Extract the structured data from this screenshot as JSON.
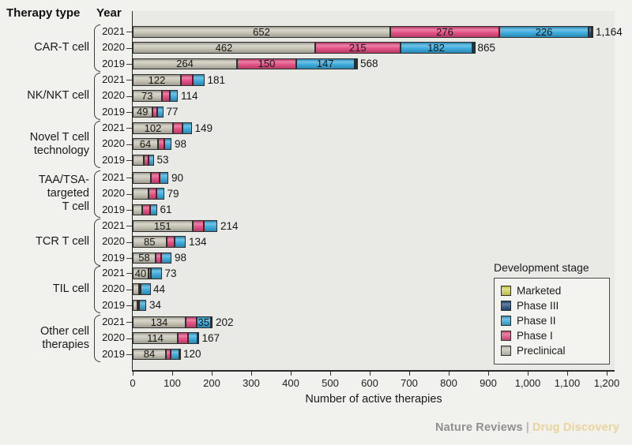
{
  "header": {
    "therapy_type": "Therapy type",
    "year": "Year"
  },
  "footer": {
    "brand1": "Nature Reviews",
    "separator": "|",
    "brand2": "Drug Discovery"
  },
  "legend": {
    "title": "Development stage",
    "items": [
      {
        "label": "Marketed",
        "color": "#d6d64f"
      },
      {
        "label": "Phase III",
        "color": "#1b4a7d"
      },
      {
        "label": "Phase II",
        "color": "#35a9dc"
      },
      {
        "label": "Phase I",
        "color": "#e34a80"
      },
      {
        "label": "Preclinical",
        "color": "#c6c3b4"
      }
    ]
  },
  "chart_data": {
    "type": "bar",
    "orientation": "horizontal-stacked",
    "xlabel": "Number of active therapies",
    "xlim": [
      0,
      1200
    ],
    "x_ticks": [
      "0",
      "100",
      "200",
      "300",
      "400",
      "500",
      "600",
      "700",
      "800",
      "900",
      "1,000",
      "1,100",
      "1,200"
    ],
    "stage_order": [
      "Preclinical",
      "Phase I",
      "Phase II",
      "Phase III",
      "Marketed"
    ],
    "stage_colors": {
      "Preclinical": "#c6c3b4",
      "Phase I": "#e34a80",
      "Phase II": "#35a9dc",
      "Phase III": "#1b4a7d",
      "Marketed": "#d6d64f"
    },
    "groups": [
      {
        "therapy": "CAR-T cell",
        "lines": [
          "CAR-T cell"
        ],
        "rows": [
          {
            "year": "2021",
            "total": 1164,
            "total_label": "1,164",
            "segments": [
              {
                "stage": "Preclinical",
                "value": 652,
                "label": "652"
              },
              {
                "stage": "Phase I",
                "value": 276,
                "label": "276"
              },
              {
                "stage": "Phase II",
                "value": 226,
                "label": "226"
              },
              {
                "stage": "Phase III",
                "value": 8
              },
              {
                "stage": "Marketed",
                "value": 2
              }
            ]
          },
          {
            "year": "2020",
            "total": 865,
            "total_label": "865",
            "segments": [
              {
                "stage": "Preclinical",
                "value": 462,
                "label": "462"
              },
              {
                "stage": "Phase I",
                "value": 215,
                "label": "215"
              },
              {
                "stage": "Phase II",
                "value": 182,
                "label": "182"
              },
              {
                "stage": "Phase III",
                "value": 4
              },
              {
                "stage": "Marketed",
                "value": 2
              }
            ]
          },
          {
            "year": "2019",
            "total": 568,
            "total_label": "568",
            "segments": [
              {
                "stage": "Preclinical",
                "value": 264,
                "label": "264"
              },
              {
                "stage": "Phase I",
                "value": 150,
                "label": "150"
              },
              {
                "stage": "Phase II",
                "value": 147,
                "label": "147"
              },
              {
                "stage": "Phase III",
                "value": 5
              },
              {
                "stage": "Marketed",
                "value": 2
              }
            ]
          }
        ]
      },
      {
        "therapy": "NK/NKT cell",
        "lines": [
          "NK/NKT cell"
        ],
        "rows": [
          {
            "year": "2021",
            "total": 181,
            "total_label": "181",
            "segments": [
              {
                "stage": "Preclinical",
                "value": 122,
                "label": "122"
              },
              {
                "stage": "Phase I",
                "value": 29
              },
              {
                "stage": "Phase II",
                "value": 30
              }
            ]
          },
          {
            "year": "2020",
            "total": 114,
            "total_label": "114",
            "segments": [
              {
                "stage": "Preclinical",
                "value": 73,
                "label": "73"
              },
              {
                "stage": "Phase I",
                "value": 20
              },
              {
                "stage": "Phase II",
                "value": 21
              }
            ]
          },
          {
            "year": "2019",
            "total": 77,
            "total_label": "77",
            "segments": [
              {
                "stage": "Preclinical",
                "value": 49,
                "label": "49"
              },
              {
                "stage": "Phase I",
                "value": 12
              },
              {
                "stage": "Phase II",
                "value": 16
              }
            ]
          }
        ]
      },
      {
        "therapy": "Novel T cell technology",
        "lines": [
          "Novel T cell",
          "technology"
        ],
        "rows": [
          {
            "year": "2021",
            "total": 149,
            "total_label": "149",
            "segments": [
              {
                "stage": "Preclinical",
                "value": 102,
                "label": "102"
              },
              {
                "stage": "Phase I",
                "value": 23
              },
              {
                "stage": "Phase II",
                "value": 24
              }
            ]
          },
          {
            "year": "2020",
            "total": 98,
            "total_label": "98",
            "segments": [
              {
                "stage": "Preclinical",
                "value": 64,
                "label": "64"
              },
              {
                "stage": "Phase I",
                "value": 16
              },
              {
                "stage": "Phase II",
                "value": 18
              }
            ]
          },
          {
            "year": "2019",
            "total": 53,
            "total_label": "53",
            "segments": [
              {
                "stage": "Preclinical",
                "value": 28
              },
              {
                "stage": "Phase I",
                "value": 12
              },
              {
                "stage": "Phase II",
                "value": 13
              }
            ]
          }
        ]
      },
      {
        "therapy": "TAA/TSA-targeted T cell",
        "lines": [
          "TAA/TSA-",
          "targeted",
          "T cell"
        ],
        "rows": [
          {
            "year": "2021",
            "total": 90,
            "total_label": "90",
            "segments": [
              {
                "stage": "Preclinical",
                "value": 46
              },
              {
                "stage": "Phase I",
                "value": 22
              },
              {
                "stage": "Phase II",
                "value": 22
              }
            ]
          },
          {
            "year": "2020",
            "total": 79,
            "total_label": "79",
            "segments": [
              {
                "stage": "Preclinical",
                "value": 39
              },
              {
                "stage": "Phase I",
                "value": 20
              },
              {
                "stage": "Phase II",
                "value": 20
              }
            ]
          },
          {
            "year": "2019",
            "total": 61,
            "total_label": "61",
            "segments": [
              {
                "stage": "Preclinical",
                "value": 24
              },
              {
                "stage": "Phase I",
                "value": 19
              },
              {
                "stage": "Phase II",
                "value": 18
              }
            ]
          }
        ]
      },
      {
        "therapy": "TCR T cell",
        "lines": [
          "TCR T cell"
        ],
        "rows": [
          {
            "year": "2021",
            "total": 214,
            "total_label": "214",
            "segments": [
              {
                "stage": "Preclinical",
                "value": 151,
                "label": "151"
              },
              {
                "stage": "Phase I",
                "value": 29
              },
              {
                "stage": "Phase II",
                "value": 34
              }
            ]
          },
          {
            "year": "2020",
            "total": 134,
            "total_label": "134",
            "segments": [
              {
                "stage": "Preclinical",
                "value": 85,
                "label": "85"
              },
              {
                "stage": "Phase I",
                "value": 21
              },
              {
                "stage": "Phase II",
                "value": 28
              }
            ]
          },
          {
            "year": "2019",
            "total": 98,
            "total_label": "98",
            "segments": [
              {
                "stage": "Preclinical",
                "value": 58,
                "label": "58"
              },
              {
                "stage": "Phase I",
                "value": 14
              },
              {
                "stage": "Phase II",
                "value": 26
              }
            ]
          }
        ]
      },
      {
        "therapy": "TIL cell",
        "lines": [
          "TIL cell"
        ],
        "rows": [
          {
            "year": "2021",
            "total": 73,
            "total_label": "73",
            "segments": [
              {
                "stage": "Preclinical",
                "value": 40,
                "label": "40"
              },
              {
                "stage": "Phase I",
                "value": 6
              },
              {
                "stage": "Phase II",
                "value": 27
              }
            ]
          },
          {
            "year": "2020",
            "total": 44,
            "total_label": "44",
            "segments": [
              {
                "stage": "Preclinical",
                "value": 16
              },
              {
                "stage": "Phase I",
                "value": 2
              },
              {
                "stage": "Phase II",
                "value": 26
              }
            ]
          },
          {
            "year": "2019",
            "total": 34,
            "total_label": "34",
            "segments": [
              {
                "stage": "Preclinical",
                "value": 12
              },
              {
                "stage": "Phase I",
                "value": 4
              },
              {
                "stage": "Phase II",
                "value": 18
              }
            ]
          }
        ]
      },
      {
        "therapy": "Other cell therapies",
        "lines": [
          "Other cell",
          "therapies"
        ],
        "rows": [
          {
            "year": "2021",
            "total": 202,
            "total_label": "202",
            "segments": [
              {
                "stage": "Preclinical",
                "value": 134,
                "label": "134"
              },
              {
                "stage": "Phase I",
                "value": 28
              },
              {
                "stage": "Phase II",
                "value": 35,
                "label": "35"
              },
              {
                "stage": "Phase III",
                "value": 5
              }
            ]
          },
          {
            "year": "2020",
            "total": 167,
            "total_label": "167",
            "segments": [
              {
                "stage": "Preclinical",
                "value": 114,
                "label": "114"
              },
              {
                "stage": "Phase I",
                "value": 26
              },
              {
                "stage": "Phase II",
                "value": 24
              },
              {
                "stage": "Phase III",
                "value": 3
              }
            ]
          },
          {
            "year": "2019",
            "total": 120,
            "total_label": "120",
            "segments": [
              {
                "stage": "Preclinical",
                "value": 84,
                "label": "84"
              },
              {
                "stage": "Phase I",
                "value": 12
              },
              {
                "stage": "Phase II",
                "value": 22
              },
              {
                "stage": "Phase III",
                "value": 2
              }
            ]
          }
        ]
      }
    ]
  }
}
